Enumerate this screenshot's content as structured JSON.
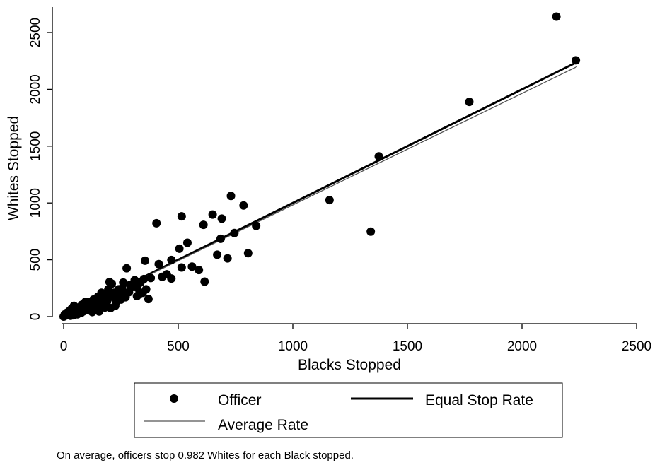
{
  "chart_data": {
    "type": "scatter",
    "xlabel": "Blacks Stopped",
    "ylabel": "Whites Stopped",
    "xlim": [
      -30,
      2530
    ],
    "ylim": [
      -40,
      2700
    ],
    "x_ticks": [
      0,
      500,
      1000,
      1500,
      2000,
      2500
    ],
    "y_ticks": [
      0,
      500,
      1000,
      1500,
      2000,
      2500
    ],
    "grid": false,
    "legend_position": "bottom",
    "series": [
      {
        "name": "Officer",
        "kind": "scatter",
        "color": "#000000",
        "points": [
          [
            2150,
            2640
          ],
          [
            2235,
            2255
          ],
          [
            1770,
            1890
          ],
          [
            1375,
            1410
          ],
          [
            1160,
            1025
          ],
          [
            1340,
            748
          ],
          [
            730,
            1062
          ],
          [
            785,
            978
          ],
          [
            650,
            898
          ],
          [
            515,
            882
          ],
          [
            690,
            862
          ],
          [
            405,
            822
          ],
          [
            610,
            808
          ],
          [
            840,
            798
          ],
          [
            745,
            735
          ],
          [
            685,
            685
          ],
          [
            540,
            650
          ],
          [
            505,
            598
          ],
          [
            805,
            558
          ],
          [
            670,
            545
          ],
          [
            715,
            512
          ],
          [
            355,
            492
          ],
          [
            470,
            498
          ],
          [
            415,
            462
          ],
          [
            560,
            440
          ],
          [
            515,
            432
          ],
          [
            275,
            425
          ],
          [
            590,
            410
          ],
          [
            615,
            308
          ],
          [
            450,
            372
          ],
          [
            430,
            350
          ],
          [
            470,
            335
          ],
          [
            380,
            340
          ],
          [
            350,
            330
          ],
          [
            310,
            320
          ],
          [
            335,
            300
          ],
          [
            290,
            280
          ],
          [
            260,
            300
          ],
          [
            210,
            290
          ],
          [
            200,
            305
          ],
          [
            360,
            240
          ],
          [
            245,
            215
          ],
          [
            300,
            260
          ],
          [
            240,
            240
          ],
          [
            220,
            210
          ],
          [
            195,
            190
          ],
          [
            370,
            155
          ],
          [
            250,
            150
          ],
          [
            230,
            130
          ],
          [
            180,
            160
          ],
          [
            170,
            130
          ],
          [
            150,
            175
          ],
          [
            140,
            120
          ],
          [
            130,
            150
          ],
          [
            120,
            110
          ],
          [
            110,
            95
          ],
          [
            100,
            85
          ],
          [
            95,
            130
          ],
          [
            90,
            60
          ],
          [
            80,
            105
          ],
          [
            70,
            55
          ],
          [
            65,
            80
          ],
          [
            55,
            60
          ],
          [
            50,
            40
          ],
          [
            45,
            95
          ],
          [
            40,
            30
          ],
          [
            35,
            70
          ],
          [
            30,
            20
          ],
          [
            25,
            50
          ],
          [
            20,
            15
          ],
          [
            15,
            35
          ],
          [
            10,
            10
          ],
          [
            5,
            20
          ],
          [
            3,
            5
          ],
          [
            0,
            0
          ],
          [
            60,
            20
          ],
          [
            75,
            30
          ],
          [
            85,
            45
          ],
          [
            105,
            60
          ],
          [
            115,
            75
          ],
          [
            160,
            85
          ],
          [
            180,
            80
          ],
          [
            205,
            75
          ],
          [
            225,
            95
          ],
          [
            155,
            45
          ],
          [
            125,
            40
          ],
          [
            135,
            70
          ],
          [
            270,
            190
          ],
          [
            285,
            215
          ],
          [
            320,
            255
          ],
          [
            330,
            200
          ],
          [
            195,
            240
          ],
          [
            165,
            210
          ],
          [
            210,
            175
          ],
          [
            235,
            190
          ],
          [
            255,
            250
          ],
          [
            175,
            105
          ],
          [
            145,
            90
          ],
          [
            190,
            135
          ],
          [
            112,
            130
          ],
          [
            98,
            62
          ],
          [
            270,
            170
          ],
          [
            320,
            180
          ],
          [
            345,
            210
          ],
          [
            30,
            8
          ],
          [
            42,
            12
          ],
          [
            12,
            28
          ]
        ]
      },
      {
        "name": "Equal Stop Rate",
        "kind": "line",
        "color": "#000000",
        "x": [
          0,
          2240
        ],
        "y": [
          0,
          2240
        ]
      },
      {
        "name": "Average Rate",
        "kind": "line",
        "color": "#555555",
        "x": [
          0,
          2240
        ],
        "y": [
          0,
          2200
        ]
      }
    ],
    "note": "On average, officers stop 0.982 Whites for each Black stopped."
  }
}
